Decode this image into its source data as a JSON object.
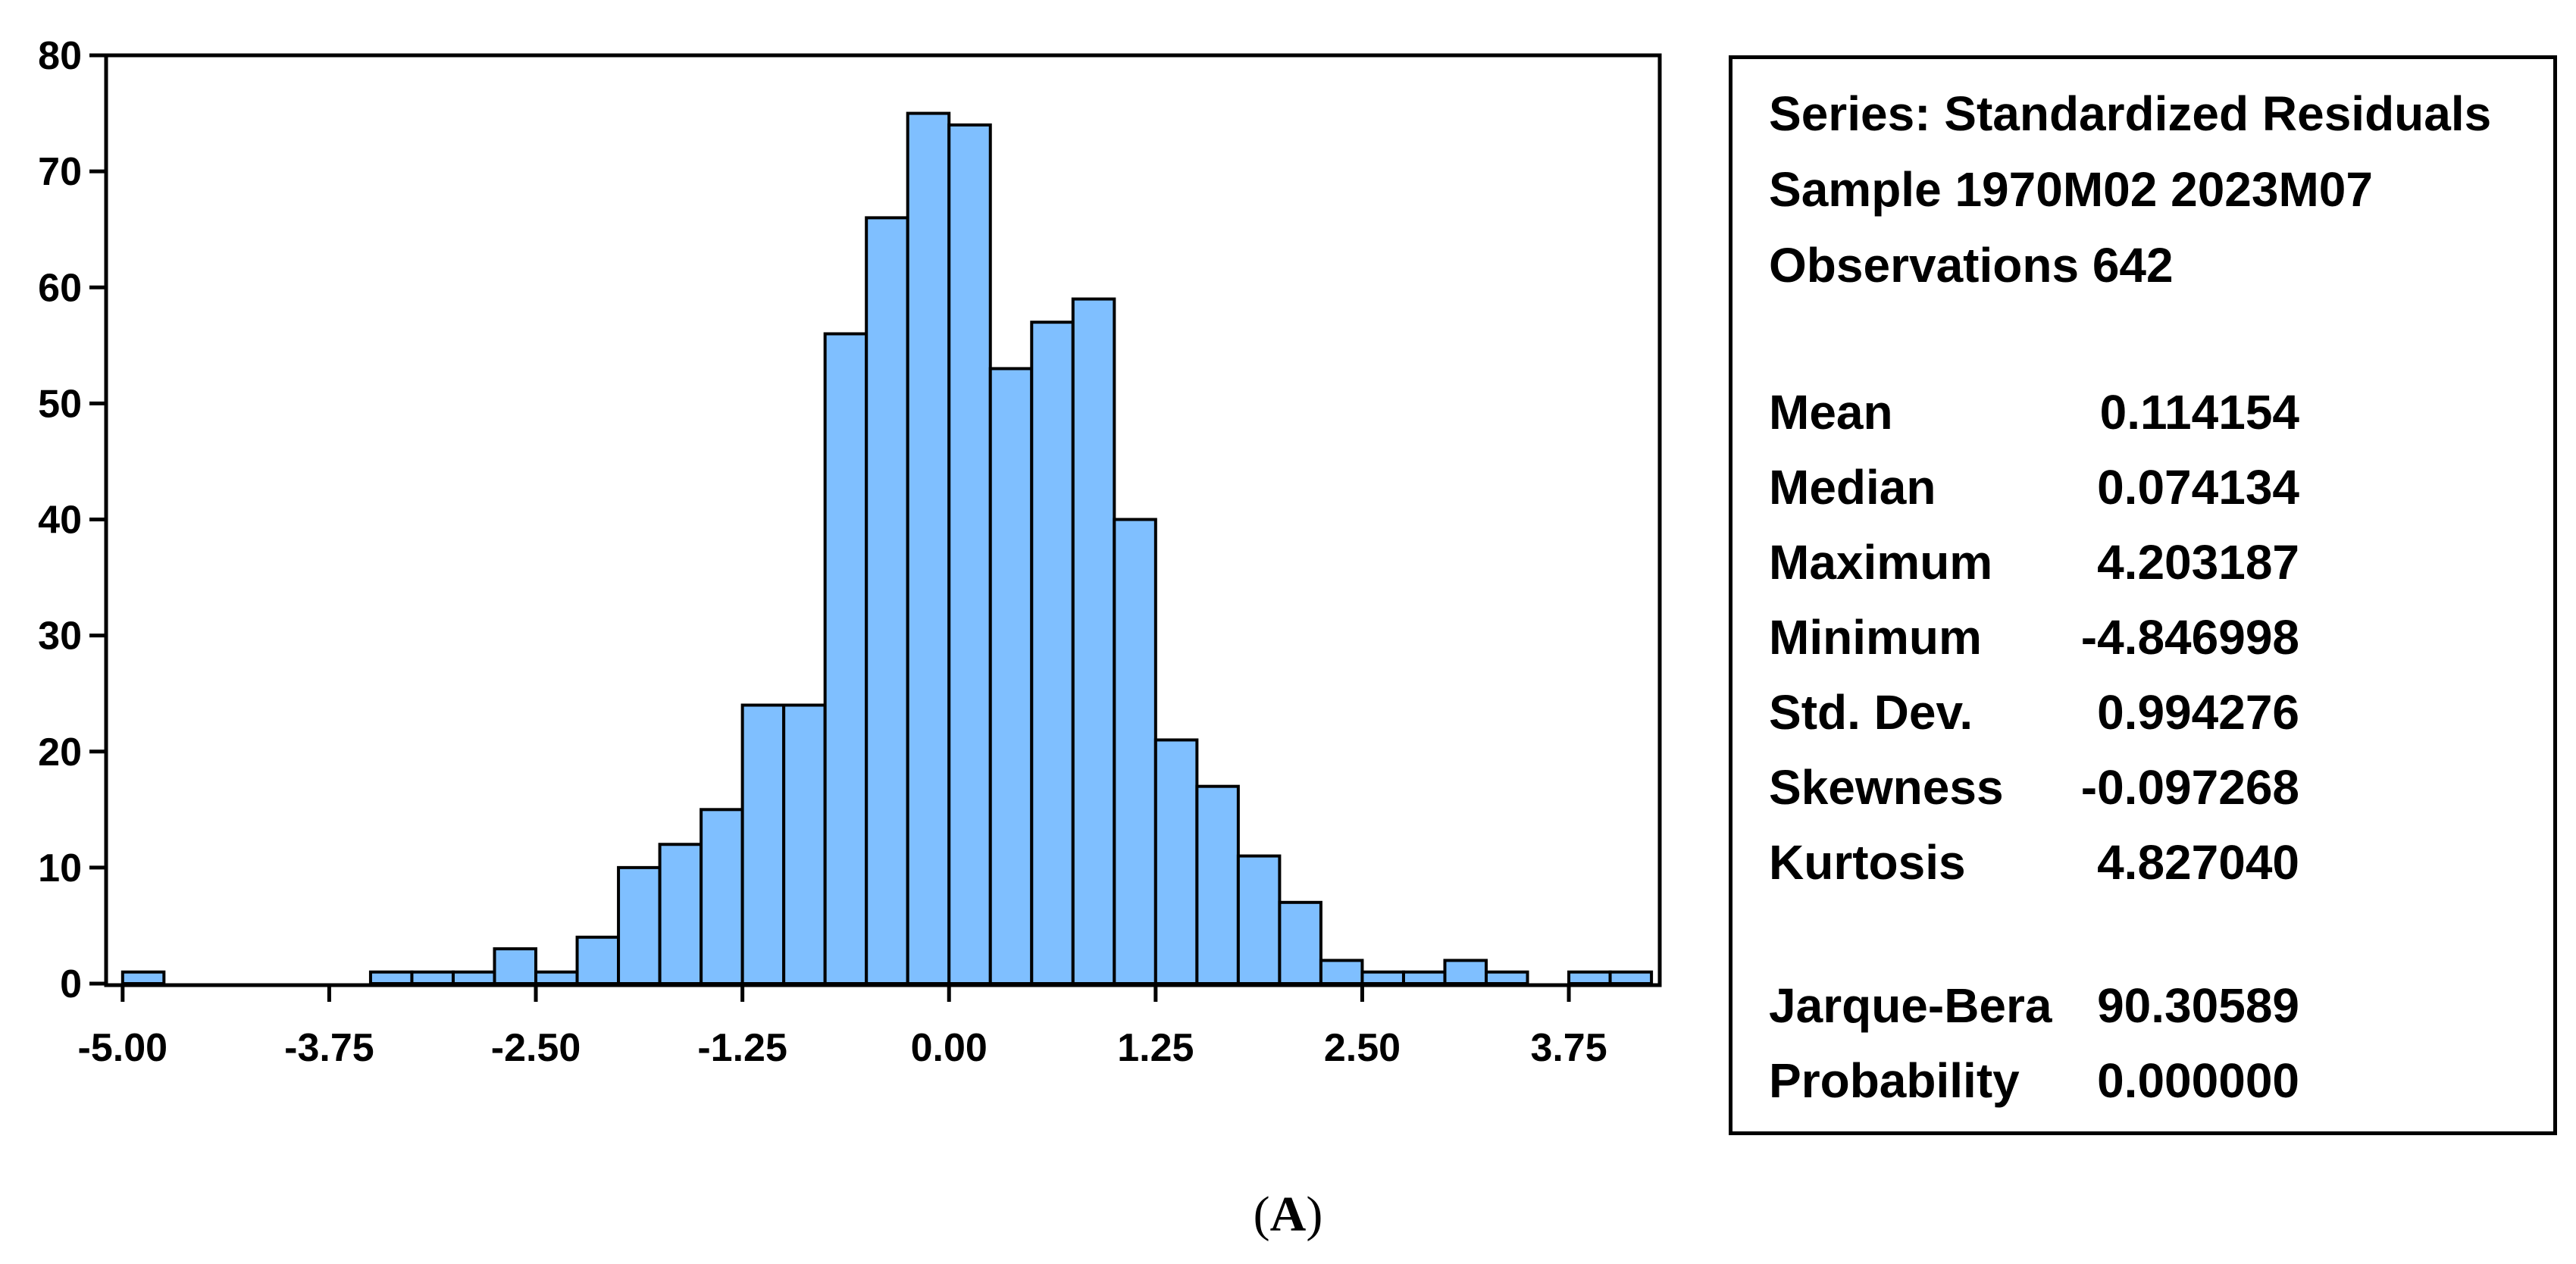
{
  "chart_data": {
    "type": "bar",
    "title": "",
    "xlabel": "",
    "ylabel": "",
    "bin_width": 0.25,
    "bins": [
      {
        "left": -5.0,
        "count": 1
      },
      {
        "left": -4.75,
        "count": 0
      },
      {
        "left": -4.5,
        "count": 0
      },
      {
        "left": -4.25,
        "count": 0
      },
      {
        "left": -4.0,
        "count": 0
      },
      {
        "left": -3.75,
        "count": 0
      },
      {
        "left": -3.5,
        "count": 1
      },
      {
        "left": -3.25,
        "count": 1
      },
      {
        "left": -3.0,
        "count": 1
      },
      {
        "left": -2.75,
        "count": 3
      },
      {
        "left": -2.5,
        "count": 1
      },
      {
        "left": -2.25,
        "count": 4
      },
      {
        "left": -2.0,
        "count": 10
      },
      {
        "left": -1.75,
        "count": 12
      },
      {
        "left": -1.5,
        "count": 15
      },
      {
        "left": -1.25,
        "count": 24
      },
      {
        "left": -1.0,
        "count": 24
      },
      {
        "left": -0.75,
        "count": 56
      },
      {
        "left": -0.5,
        "count": 66
      },
      {
        "left": -0.25,
        "count": 75
      },
      {
        "left": 0.0,
        "count": 74
      },
      {
        "left": 0.25,
        "count": 53
      },
      {
        "left": 0.5,
        "count": 57
      },
      {
        "left": 0.75,
        "count": 59
      },
      {
        "left": 1.0,
        "count": 40
      },
      {
        "left": 1.25,
        "count": 21
      },
      {
        "left": 1.5,
        "count": 17
      },
      {
        "left": 1.75,
        "count": 11
      },
      {
        "left": 2.0,
        "count": 7
      },
      {
        "left": 2.25,
        "count": 2
      },
      {
        "left": 2.5,
        "count": 1
      },
      {
        "left": 2.75,
        "count": 1
      },
      {
        "left": 3.0,
        "count": 2
      },
      {
        "left": 3.25,
        "count": 1
      },
      {
        "left": 3.5,
        "count": 0
      },
      {
        "left": 3.75,
        "count": 1
      },
      {
        "left": 4.0,
        "count": 1
      }
    ],
    "xlim": [
      -5.1,
      4.3
    ],
    "ylim": [
      0,
      80
    ],
    "x_ticks": [
      -5.0,
      -3.75,
      -2.5,
      -1.25,
      0.0,
      1.25,
      2.5,
      3.75
    ],
    "x_tick_labels": [
      "-5.00",
      "-3.75",
      "-2.50",
      "-1.25",
      "0.00",
      "1.25",
      "2.50",
      "3.75"
    ],
    "y_ticks": [
      0,
      10,
      20,
      30,
      40,
      50,
      60,
      70,
      80
    ],
    "y_tick_labels": [
      "0",
      "10",
      "20",
      "30",
      "40",
      "50",
      "60",
      "70",
      "80"
    ],
    "bar_color": "#7fbfff",
    "edge_color": "#000000",
    "grid": false
  },
  "stats": {
    "series": "Series: Standardized Residuals",
    "sample": "Sample 1970M02 2023M07",
    "observations": "Observations 642",
    "rows": [
      {
        "label": "Mean",
        "value": "0.114154"
      },
      {
        "label": "Median",
        "value": "0.074134"
      },
      {
        "label": "Maximum",
        "value": "4.203187"
      },
      {
        "label": "Minimum",
        "value": "-4.846998"
      },
      {
        "label": "Std. Dev.",
        "value": "0.994276"
      },
      {
        "label": "Skewness",
        "value": "-0.097268"
      },
      {
        "label": "Kurtosis",
        "value": "4.827040"
      }
    ],
    "jb_rows": [
      {
        "label": "Jarque-Bera",
        "value": "90.30589"
      },
      {
        "label": "Probability",
        "value": "0.000000"
      }
    ]
  },
  "caption": {
    "open": "(",
    "letter": "A",
    "close": ")"
  }
}
